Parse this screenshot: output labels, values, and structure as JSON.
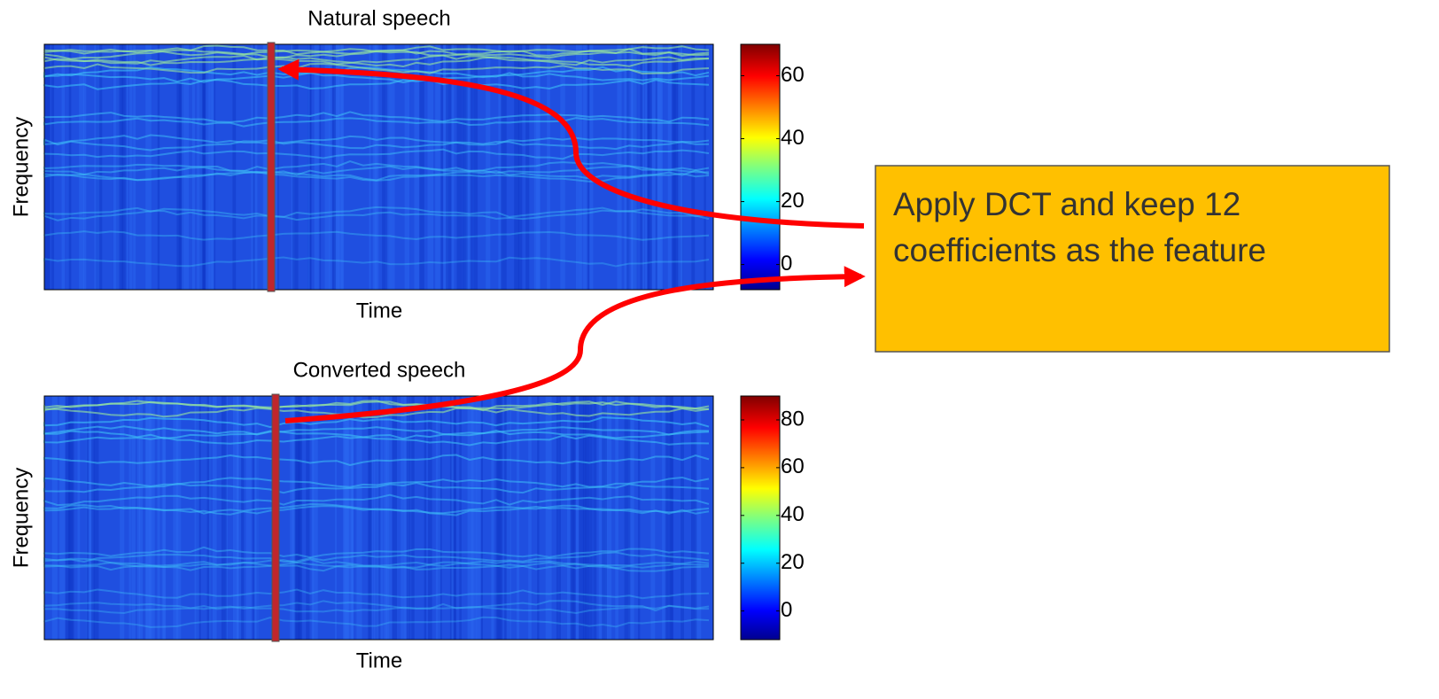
{
  "panels": [
    {
      "title": "Natural speech",
      "xlabel": "Time",
      "ylabel": "Frequency",
      "colorbar": {
        "lim": [
          -8,
          70
        ],
        "ticks": [
          0,
          20,
          40,
          60
        ]
      }
    },
    {
      "title": "Converted speech",
      "xlabel": "Time",
      "ylabel": "Frequency",
      "colorbar": {
        "lim": [
          -12,
          90
        ],
        "ticks": [
          0,
          20,
          40,
          60,
          80
        ]
      }
    }
  ],
  "box": {
    "lines": [
      "Apply DCT and keep 12",
      "coefficients as the feature"
    ]
  }
}
